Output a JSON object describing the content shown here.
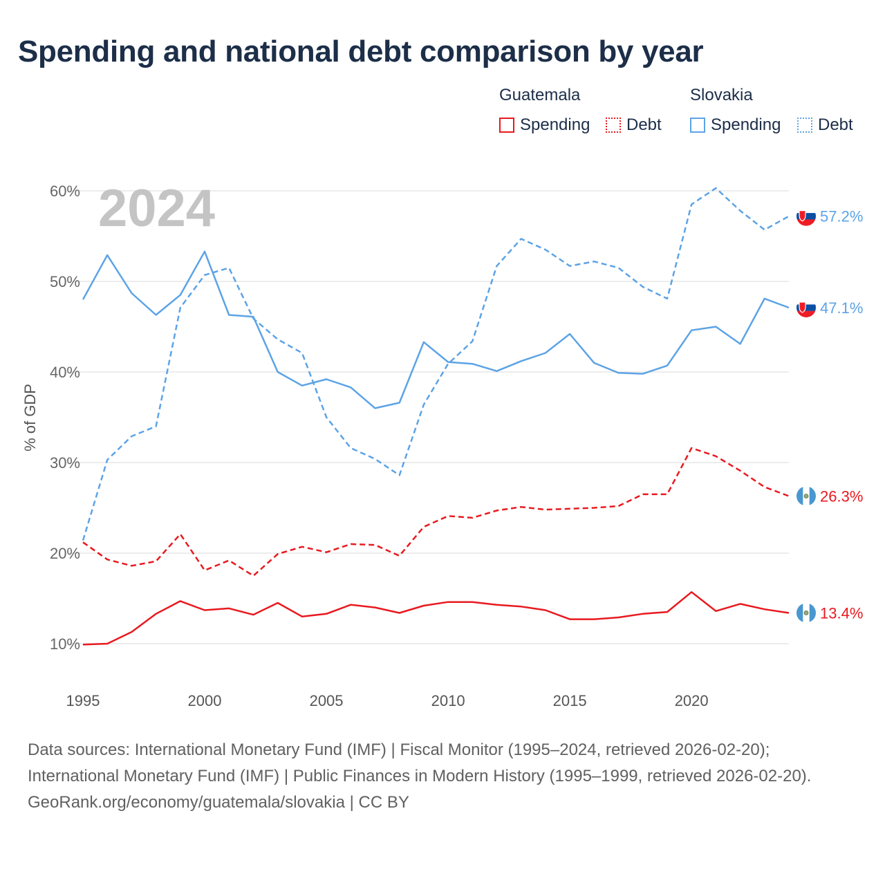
{
  "title": "Spending and national debt comparison by year",
  "legend": {
    "groups": [
      {
        "name": "Guatemala",
        "color": "#e8191f",
        "items": [
          {
            "label": "Spending",
            "style": "solid"
          },
          {
            "label": "Debt",
            "style": "dotted"
          }
        ]
      },
      {
        "name": "Slovakia",
        "color": "#5ca3e6",
        "items": [
          {
            "label": "Spending",
            "style": "solid"
          },
          {
            "label": "Debt",
            "style": "dotted"
          }
        ]
      }
    ]
  },
  "watermark_year": "2024",
  "footer": {
    "sources": "Data sources: International Monetary Fund (IMF) | Fiscal Monitor (1995–2024, retrieved 2026-02-20); International Monetary Fund (IMF) | Public Finances in Modern History (1995–1999, retrieved 2026-02-20).",
    "attribution": "GeoRank.org/economy/guatemala/slovakia | CC BY"
  },
  "chart_data": {
    "type": "line",
    "title": "Spending and national debt comparison by year",
    "xlabel": "",
    "ylabel": "% of GDP",
    "xlim": [
      1995,
      2024
    ],
    "ylim": [
      10,
      60
    ],
    "x_ticks": [
      "1995",
      "2000",
      "2005",
      "2010",
      "2015",
      "2020"
    ],
    "y_ticks": [
      "10%",
      "20%",
      "30%",
      "40%",
      "50%",
      "60%"
    ],
    "grid": true,
    "x": [
      1995,
      1996,
      1997,
      1998,
      1999,
      2000,
      2001,
      2002,
      2003,
      2004,
      2005,
      2006,
      2007,
      2008,
      2009,
      2010,
      2011,
      2012,
      2013,
      2014,
      2015,
      2016,
      2017,
      2018,
      2019,
      2020,
      2021,
      2022,
      2023,
      2024
    ],
    "series": [
      {
        "name": "Guatemala Spending",
        "country": "Guatemala",
        "metric": "Spending",
        "color": "#e8191f",
        "dash": "solid",
        "end_label": "13.4%",
        "values": [
          9.9,
          10.0,
          11.3,
          13.3,
          14.7,
          13.7,
          13.9,
          13.2,
          14.5,
          13.0,
          13.3,
          14.3,
          14.0,
          13.4,
          14.2,
          14.6,
          14.6,
          14.3,
          14.1,
          13.7,
          12.7,
          12.7,
          12.9,
          13.3,
          13.5,
          15.7,
          13.6,
          14.4,
          13.8,
          13.4
        ]
      },
      {
        "name": "Guatemala Debt",
        "country": "Guatemala",
        "metric": "Debt",
        "color": "#e8191f",
        "dash": "dashed",
        "end_label": "26.3%",
        "values": [
          21.2,
          19.3,
          18.6,
          19.1,
          22.1,
          18.1,
          19.2,
          17.5,
          19.9,
          20.7,
          20.1,
          21.0,
          20.9,
          19.7,
          22.9,
          24.1,
          23.9,
          24.7,
          25.1,
          24.8,
          24.9,
          25.0,
          25.2,
          26.5,
          26.5,
          31.6,
          30.7,
          29.1,
          27.3,
          26.3
        ]
      },
      {
        "name": "Slovakia Spending",
        "country": "Slovakia",
        "metric": "Spending",
        "color": "#5ca3e6",
        "dash": "solid",
        "end_label": "47.1%",
        "values": [
          48.0,
          52.9,
          48.7,
          46.3,
          48.5,
          53.3,
          46.3,
          46.1,
          40.0,
          38.5,
          39.2,
          38.3,
          36.0,
          36.6,
          43.3,
          41.1,
          40.9,
          40.1,
          41.2,
          42.1,
          44.2,
          41.0,
          39.9,
          39.8,
          40.7,
          44.6,
          45.0,
          43.1,
          48.1,
          47.1
        ]
      },
      {
        "name": "Slovakia Debt",
        "country": "Slovakia",
        "metric": "Debt",
        "color": "#5ca3e6",
        "dash": "dashed",
        "end_label": "57.2%",
        "values": [
          21.4,
          30.3,
          32.9,
          34.0,
          47.1,
          50.7,
          51.5,
          45.9,
          43.6,
          42.1,
          35.0,
          31.6,
          30.4,
          28.6,
          36.4,
          40.9,
          43.4,
          51.7,
          54.7,
          53.5,
          51.7,
          52.2,
          51.5,
          49.4,
          48.1,
          58.5,
          60.3,
          57.8,
          55.7,
          57.2
        ]
      }
    ]
  }
}
